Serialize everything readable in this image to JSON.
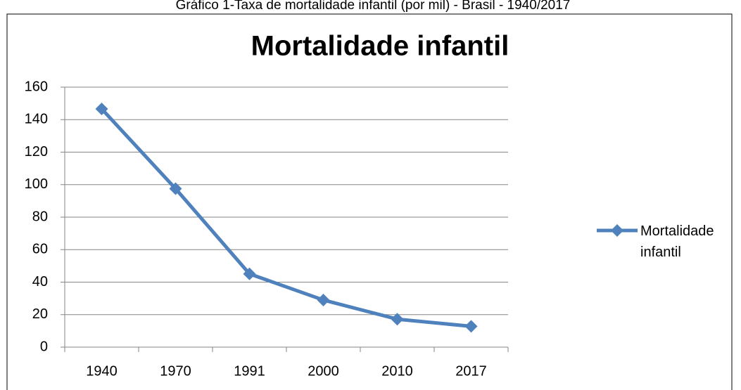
{
  "chart_data": {
    "type": "line",
    "subtitle": "Gráfico 1-Taxa de mortalidade infantil (por mil) - Brasil - 1940/2017",
    "title": "Mortalidade infantil",
    "categories": [
      "1940",
      "1970",
      "1991",
      "2000",
      "2010",
      "2017"
    ],
    "series": [
      {
        "name": "Mortalidade infantil",
        "color": "#4f81bd",
        "values": [
          146.6,
          97.5,
          45.1,
          29.0,
          17.2,
          12.8
        ]
      }
    ],
    "ylim": [
      0,
      160
    ],
    "yticks": [
      0,
      20,
      40,
      60,
      80,
      100,
      120,
      140,
      160
    ],
    "grid": true,
    "legend": "right"
  }
}
